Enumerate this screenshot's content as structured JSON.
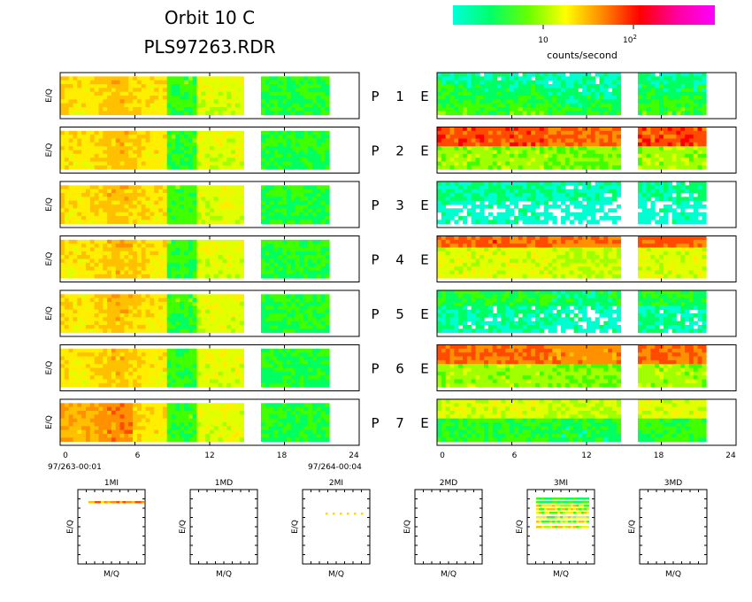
{
  "header": {
    "title": "Orbit 10 C",
    "filename": "PLS97263.RDR"
  },
  "colorbar": {
    "label": "counts/second",
    "tick_10": "10",
    "tick_100_base": "10",
    "tick_100_exp": "2",
    "gradient": [
      "#00ffd8",
      "#00ff6a",
      "#66ff00",
      "#ffff00",
      "#ff8800",
      "#ff0000",
      "#ff00a0",
      "#ff00ff"
    ]
  },
  "chart_data": {
    "type": "heatmap",
    "rows": [
      {
        "p": "P",
        "num": "1",
        "e": "E"
      },
      {
        "p": "P",
        "num": "2",
        "e": "E"
      },
      {
        "p": "P",
        "num": "3",
        "e": "E"
      },
      {
        "p": "P",
        "num": "4",
        "e": "E"
      },
      {
        "p": "P",
        "num": "5",
        "e": "E"
      },
      {
        "p": "P",
        "num": "6",
        "e": "E"
      },
      {
        "p": "P",
        "num": "7",
        "e": "E"
      }
    ],
    "ylabel": "E/Q",
    "xlim": [
      0,
      24
    ],
    "xticks": [
      "0",
      "6",
      "12",
      "18",
      "24"
    ],
    "time_start": "97/263-00:01",
    "time_end": "97/264-00:04",
    "data_gaps_hours": [
      [
        14.6,
        16.1
      ],
      [
        21.6,
        24
      ]
    ],
    "mass_panels": [
      {
        "title": "1MI",
        "xlabel": "M/Q",
        "ylabel": "E/Q"
      },
      {
        "title": "1MD",
        "xlabel": "M/Q",
        "ylabel": "E/Q"
      },
      {
        "title": "2MI",
        "xlabel": "M/Q",
        "ylabel": "E/Q"
      },
      {
        "title": "2MD",
        "xlabel": "M/Q",
        "ylabel": "E/Q"
      },
      {
        "title": "3MI",
        "xlabel": "M/Q",
        "ylabel": "E/Q"
      },
      {
        "title": "3MD",
        "xlabel": "M/Q",
        "ylabel": "E/Q"
      }
    ]
  }
}
